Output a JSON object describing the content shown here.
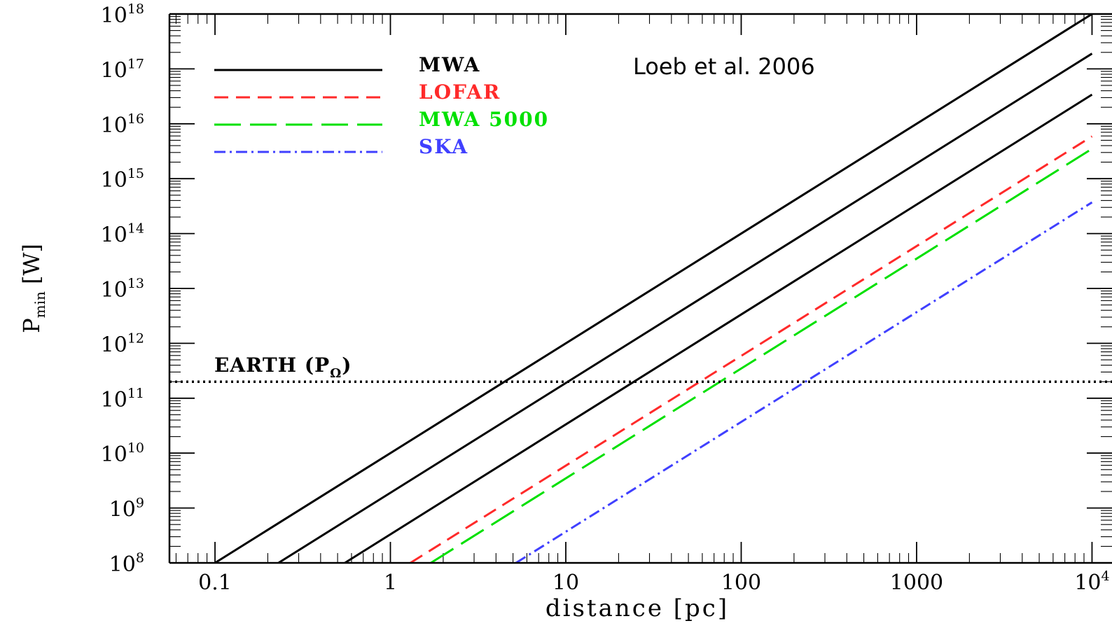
{
  "chart_data": {
    "type": "line",
    "title": "",
    "annotation": "Loeb et al. 2006",
    "xlabel": "distance [pc]",
    "ylabel_base": "P",
    "ylabel_sub": "min",
    "ylabel_unit": "[W]",
    "x_scale": "log",
    "y_scale": "log",
    "xlim": [
      0.055,
      13000
    ],
    "ylim": [
      100000000.0,
      1e+18
    ],
    "x_ticks": [
      {
        "value": 0.1,
        "label": "0.1"
      },
      {
        "value": 1,
        "label": "1"
      },
      {
        "value": 10,
        "label": "10"
      },
      {
        "value": 100,
        "label": "100"
      },
      {
        "value": 1000,
        "label": "1000"
      },
      {
        "value": 10000,
        "label": "10",
        "exp": "4"
      }
    ],
    "y_ticks": [
      {
        "value": 100000000.0,
        "base": "10",
        "exp": "8"
      },
      {
        "value": 1000000000.0,
        "base": "10",
        "exp": "9"
      },
      {
        "value": 10000000000.0,
        "base": "10",
        "exp": "10"
      },
      {
        "value": 100000000000.0,
        "base": "10",
        "exp": "11"
      },
      {
        "value": 1000000000000.0,
        "base": "10",
        "exp": "12"
      },
      {
        "value": 10000000000000.0,
        "base": "10",
        "exp": "13"
      },
      {
        "value": 100000000000000.0,
        "base": "10",
        "exp": "14"
      },
      {
        "value": 1000000000000000.0,
        "base": "10",
        "exp": "15"
      },
      {
        "value": 1e+16,
        "base": "10",
        "exp": "16"
      },
      {
        "value": 1e+17,
        "base": "10",
        "exp": "17"
      },
      {
        "value": 1e+18,
        "base": "10",
        "exp": "18"
      }
    ],
    "legend": {
      "placement": "top-left",
      "entries": [
        {
          "label": "MWA",
          "color": "#000000",
          "style": "solid"
        },
        {
          "label": "LOFAR",
          "color": "#ff2a2a",
          "style": "dashed"
        },
        {
          "label": "MWA 5000",
          "color": "#00e000",
          "style": "longdash"
        },
        {
          "label": "SKA",
          "color": "#4040ff",
          "style": "dashdot"
        }
      ]
    },
    "series": [
      {
        "name": "MWA",
        "color": "#000000",
        "style": "solid",
        "points": [
          [
            0.1,
            100000000.0
          ],
          [
            10000,
            1e+18
          ]
        ]
      },
      {
        "name": "MWA",
        "color": "#000000",
        "style": "solid",
        "points": [
          [
            0.23,
            100000000.0
          ],
          [
            10000,
            1.9e+17
          ]
        ]
      },
      {
        "name": "MWA",
        "color": "#000000",
        "style": "solid",
        "points": [
          [
            0.55,
            100000000.0
          ],
          [
            10000,
            3.4e+16
          ]
        ]
      },
      {
        "name": "LOFAR",
        "color": "#ff2a2a",
        "style": "dashed",
        "points": [
          [
            1.3,
            100000000.0
          ],
          [
            10000,
            5900000000000000.0
          ]
        ]
      },
      {
        "name": "MWA 5000",
        "color": "#00e000",
        "style": "longdash",
        "points": [
          [
            1.7,
            100000000.0
          ],
          [
            10000,
            3500000000000000.0
          ]
        ]
      },
      {
        "name": "SKA",
        "color": "#4040ff",
        "style": "dashdot",
        "points": [
          [
            5.2,
            100000000.0
          ],
          [
            10000,
            370000000000000.0
          ]
        ]
      }
    ],
    "reference_line": {
      "label_prefix": "EARTH (P",
      "label_sub": "Ω",
      "label_suffix": ")",
      "value": 200000000000.0,
      "style": "dotted",
      "color": "#000000"
    }
  }
}
